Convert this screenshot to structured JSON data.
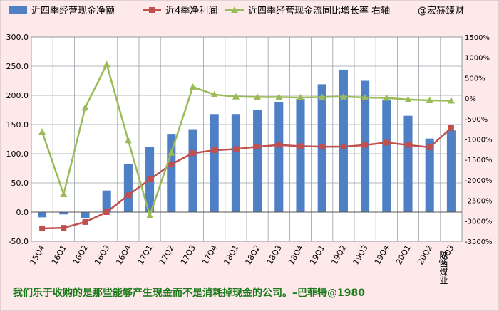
{
  "chart_data": {
    "type": "bar+line",
    "legend": {
      "bar": "近四季经营现金净额",
      "line1": "近4季净利润",
      "line2": "近四季经营现金流同比增长率 右轴",
      "author": "@宏赫臻财",
      "placement": "top"
    },
    "categories": [
      "15Q4",
      "16Q1",
      "16Q2",
      "16Q3",
      "16Q4",
      "17Q1",
      "17Q2",
      "17Q3",
      "17Q4",
      "18Q1",
      "18Q2",
      "18Q3",
      "18Q4",
      "19Q1",
      "19Q2",
      "19Q3",
      "19Q4",
      "20Q1",
      "20Q2",
      "20Q3"
    ],
    "left_axis": {
      "min": -50,
      "max": 300,
      "step": 50,
      "ticks": [
        "-50.0",
        "0.0",
        "50.0",
        "100.0",
        "150.0",
        "200.0",
        "250.0",
        "300.0"
      ]
    },
    "right_axis": {
      "min": -3500,
      "max": 1500,
      "step": 500,
      "ticks": [
        "-3500%",
        "-3000%",
        "-2500%",
        "-2000%",
        "-1500%",
        "-1000%",
        "-500%",
        "0%",
        "500%",
        "1000%",
        "1500%"
      ]
    },
    "series": [
      {
        "name": "近四季经营现金净额",
        "type": "bar",
        "axis": "left",
        "color": "#4f7fc4",
        "values": [
          -9,
          -4,
          -11,
          37,
          82,
          112,
          134,
          142,
          168,
          168,
          175,
          188,
          194,
          219,
          244,
          225,
          193,
          165,
          126,
          140
        ]
      },
      {
        "name": "近4季净利润",
        "type": "line",
        "axis": "left",
        "color": "#c0504d",
        "values": [
          -28,
          -27,
          -17,
          0,
          29,
          56,
          82,
          101,
          106,
          108,
          112,
          115,
          113,
          112,
          112,
          115,
          119,
          115,
          111,
          144
        ]
      },
      {
        "name": "近四季经营现金流同比增长率 右轴",
        "type": "line",
        "axis": "right",
        "color": "#9bbb59",
        "values": [
          -820,
          -2350,
          -230,
          830,
          -1030,
          -2870,
          -1330,
          280,
          90,
          40,
          30,
          30,
          20,
          30,
          40,
          20,
          10,
          -30,
          -50,
          -60
        ]
      }
    ]
  },
  "quote": "我们乐于收购的是那些能够产生现金而不是消耗掉现金的公司。–巴菲特@1980",
  "company": "陕西煤业",
  "colors": {
    "background": "#fde8ea",
    "quote_text": "#1a7a1a"
  }
}
